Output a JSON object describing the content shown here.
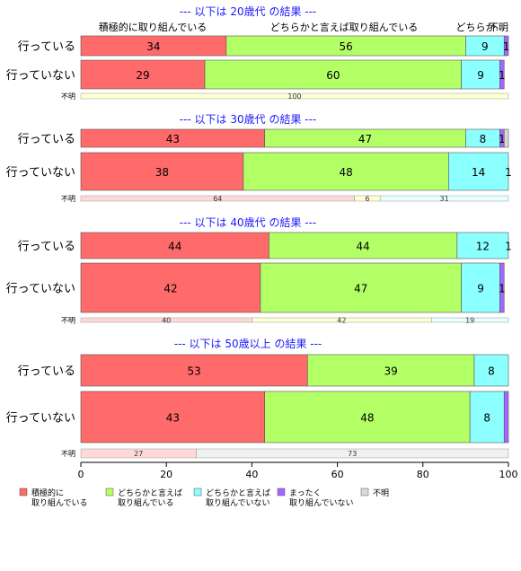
{
  "chart_data": {
    "type": "bar",
    "orientation": "horizontal",
    "stacked": true,
    "xlim": [
      0,
      100
    ],
    "x_ticks": [
      0,
      20,
      40,
      60,
      80,
      100
    ],
    "top_labels": [
      "積極的に取り組んでいる",
      "どちらかと言えば取り組んでいる",
      "どちらか…",
      "不明"
    ],
    "legend": [
      {
        "label": "積極的に\n取り組んでいる",
        "color": "#FF6A6A"
      },
      {
        "label": "どちらかと言えば\n取り組んでいる",
        "color": "#B3FF66"
      },
      {
        "label": "どちらかと言えば\n取り組んでいない",
        "color": "#8CFFFF"
      },
      {
        "label": "まったく\n取り組んでいない",
        "color": "#A366FF"
      },
      {
        "label": "不明",
        "color": "#D9D9D9"
      }
    ],
    "panels": [
      {
        "title": "--- 以下は 20歳代 の結果 ---",
        "rows": [
          {
            "label": "行っている",
            "values": [
              34,
              56,
              9,
              1,
              0
            ],
            "labels": [
              "34",
              "56",
              "9",
              "1",
              ""
            ]
          },
          {
            "label": "行っていない",
            "values": [
              29,
              60,
              9,
              1,
              0
            ],
            "labels": [
              "29",
              "60",
              "9",
              "1",
              ""
            ]
          }
        ],
        "unknown": {
          "label": "不明",
          "values": [
            0,
            100,
            0,
            0,
            0
          ],
          "labels": [
            "",
            "100",
            "",
            "",
            ""
          ]
        }
      },
      {
        "title": "--- 以下は 30歳代 の結果 ---",
        "rows": [
          {
            "label": "行っている",
            "values": [
              43,
              47,
              8,
              1,
              1
            ],
            "labels": [
              "43",
              "47",
              "8",
              "1",
              ""
            ]
          },
          {
            "label": "行っていない",
            "values": [
              38,
              48,
              14,
              1,
              0
            ],
            "labels": [
              "38",
              "48",
              "14",
              "1",
              ""
            ]
          }
        ],
        "unknown": {
          "label": "不明",
          "values": [
            64,
            6,
            31,
            0,
            0
          ],
          "labels": [
            "64",
            "6",
            "31",
            "",
            ""
          ]
        }
      },
      {
        "title": "--- 以下は 40歳代 の結果 ---",
        "rows": [
          {
            "label": "行っている",
            "values": [
              44,
              44,
              12,
              1,
              0
            ],
            "labels": [
              "44",
              "44",
              "12",
              "1",
              ""
            ]
          },
          {
            "label": "行っていない",
            "values": [
              42,
              47,
              9,
              1,
              0
            ],
            "labels": [
              "42",
              "47",
              "9",
              "1",
              ""
            ]
          }
        ],
        "unknown": {
          "label": "不明",
          "values": [
            40,
            42,
            19,
            0,
            0
          ],
          "labels": [
            "40",
            "42",
            "19",
            "",
            ""
          ]
        }
      },
      {
        "title": "--- 以下は 50歳以上 の結果 ---",
        "rows": [
          {
            "label": "行っている",
            "values": [
              53,
              39,
              8,
              0,
              0
            ],
            "labels": [
              "53",
              "39",
              "8",
              "",
              ""
            ]
          },
          {
            "label": "行っていない",
            "values": [
              43,
              48,
              8,
              1,
              0
            ],
            "labels": [
              "43",
              "48",
              "8",
              "",
              ""
            ]
          }
        ],
        "unknown": {
          "label": "不明",
          "values": [
            27,
            0,
            0,
            0,
            73
          ],
          "labels": [
            "27",
            "",
            "",
            "",
            "73"
          ]
        }
      }
    ]
  }
}
